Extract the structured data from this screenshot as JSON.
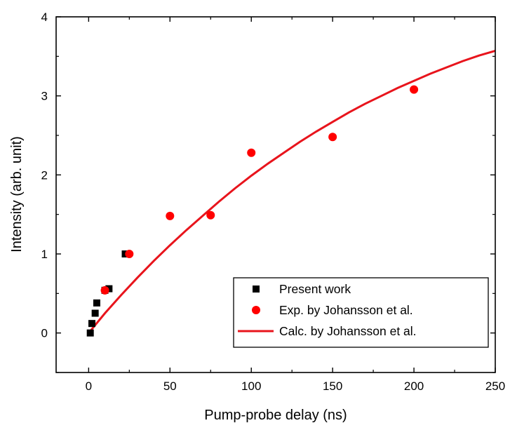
{
  "chart_data": {
    "type": "scatter",
    "title": "",
    "xlabel": "Pump-probe delay (ns)",
    "ylabel": "Intensity (arb. unit)",
    "xlim": [
      -20,
      250
    ],
    "ylim": [
      -0.5,
      4
    ],
    "xticks": [
      0,
      50,
      100,
      150,
      200,
      250
    ],
    "yticks": [
      0,
      1,
      2,
      3,
      4
    ],
    "grid": false,
    "legend_position": "bottom-right",
    "series": [
      {
        "name": "Present work",
        "kind": "scatter",
        "marker": "square",
        "color": "#000000",
        "x": [
          1,
          2,
          4,
          5,
          10,
          12.5,
          22.5
        ],
        "y": [
          0.0,
          0.12,
          0.25,
          0.38,
          0.54,
          0.56,
          1.0
        ]
      },
      {
        "name": "Exp. by Johansson et al.",
        "kind": "scatter",
        "marker": "circle",
        "color": "#ff0000",
        "x": [
          10,
          25,
          50,
          75,
          100,
          150,
          200
        ],
        "y": [
          0.54,
          1.0,
          1.48,
          1.49,
          2.28,
          2.48,
          3.08
        ]
      },
      {
        "name": "Calc. by Johansson et al.",
        "kind": "line",
        "color": "#e8141c",
        "x": [
          0,
          10,
          20,
          30,
          40,
          50,
          60,
          70,
          80,
          90,
          100,
          110,
          120,
          130,
          140,
          150,
          160,
          170,
          180,
          190,
          200,
          210,
          220,
          230,
          240,
          250
        ],
        "y": [
          0.0,
          0.25,
          0.48,
          0.7,
          0.91,
          1.11,
          1.3,
          1.48,
          1.66,
          1.83,
          1.99,
          2.14,
          2.28,
          2.42,
          2.55,
          2.67,
          2.79,
          2.9,
          3.0,
          3.1,
          3.19,
          3.28,
          3.36,
          3.44,
          3.51,
          3.57
        ]
      }
    ]
  }
}
